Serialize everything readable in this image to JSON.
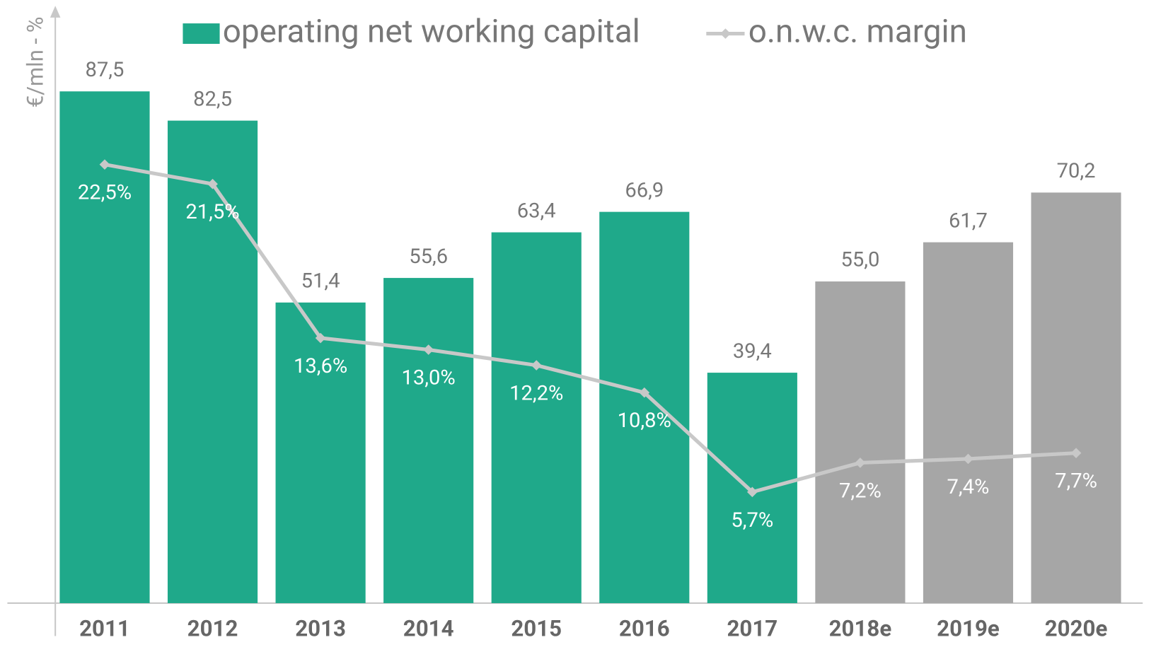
{
  "chart_data": {
    "type": "bar",
    "y_label": "€/mln - %",
    "categories": [
      "2011",
      "2012",
      "2013",
      "2014",
      "2015",
      "2016",
      "2017",
      "2018e",
      "2019e",
      "2020e"
    ],
    "series": [
      {
        "name": "operating net working capital",
        "color": "#1fa98a",
        "colors": [
          "#1fa98a",
          "#1fa98a",
          "#1fa98a",
          "#1fa98a",
          "#1fa98a",
          "#1fa98a",
          "#1fa98a",
          "#a6a6a6",
          "#a6a6a6",
          "#a6a6a6"
        ],
        "values": [
          87.5,
          82.5,
          51.4,
          55.6,
          63.4,
          66.9,
          39.4,
          55.0,
          61.7,
          70.2
        ],
        "value_labels": [
          "87,5",
          "82,5",
          "51,4",
          "55,6",
          "63,4",
          "66,9",
          "39,4",
          "55,0",
          "61,7",
          "70,2"
        ]
      },
      {
        "name": "o.n.w.c. margin",
        "type": "line",
        "axis": "y2",
        "color": "#c8c8c8",
        "values": [
          22.5,
          21.5,
          13.6,
          13.0,
          12.2,
          10.8,
          5.7,
          7.2,
          7.4,
          7.7
        ],
        "value_labels": [
          "22,5%",
          "21,5%",
          "13,6%",
          "13,0%",
          "12,2%",
          "10,8%",
          "5,7%",
          "7,2%",
          "7,4%",
          "7,7%"
        ]
      }
    ],
    "ylim": [
      0,
      100
    ],
    "y2lim": [
      0,
      30
    ]
  }
}
